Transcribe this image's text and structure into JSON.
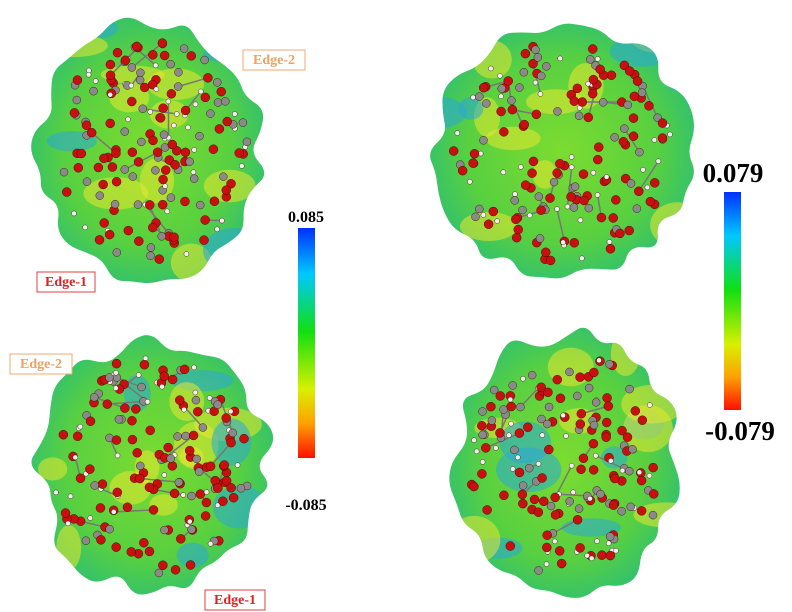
{
  "panels": [
    {
      "labels": [
        "Edge-2",
        "Edge-1"
      ]
    },
    {
      "labels": [
        "Edge-2",
        "Edge-1"
      ]
    }
  ],
  "colorbars": [
    {
      "max": 0.085,
      "min": -0.085
    },
    {
      "max": 0.079,
      "min": -0.079
    }
  ]
}
